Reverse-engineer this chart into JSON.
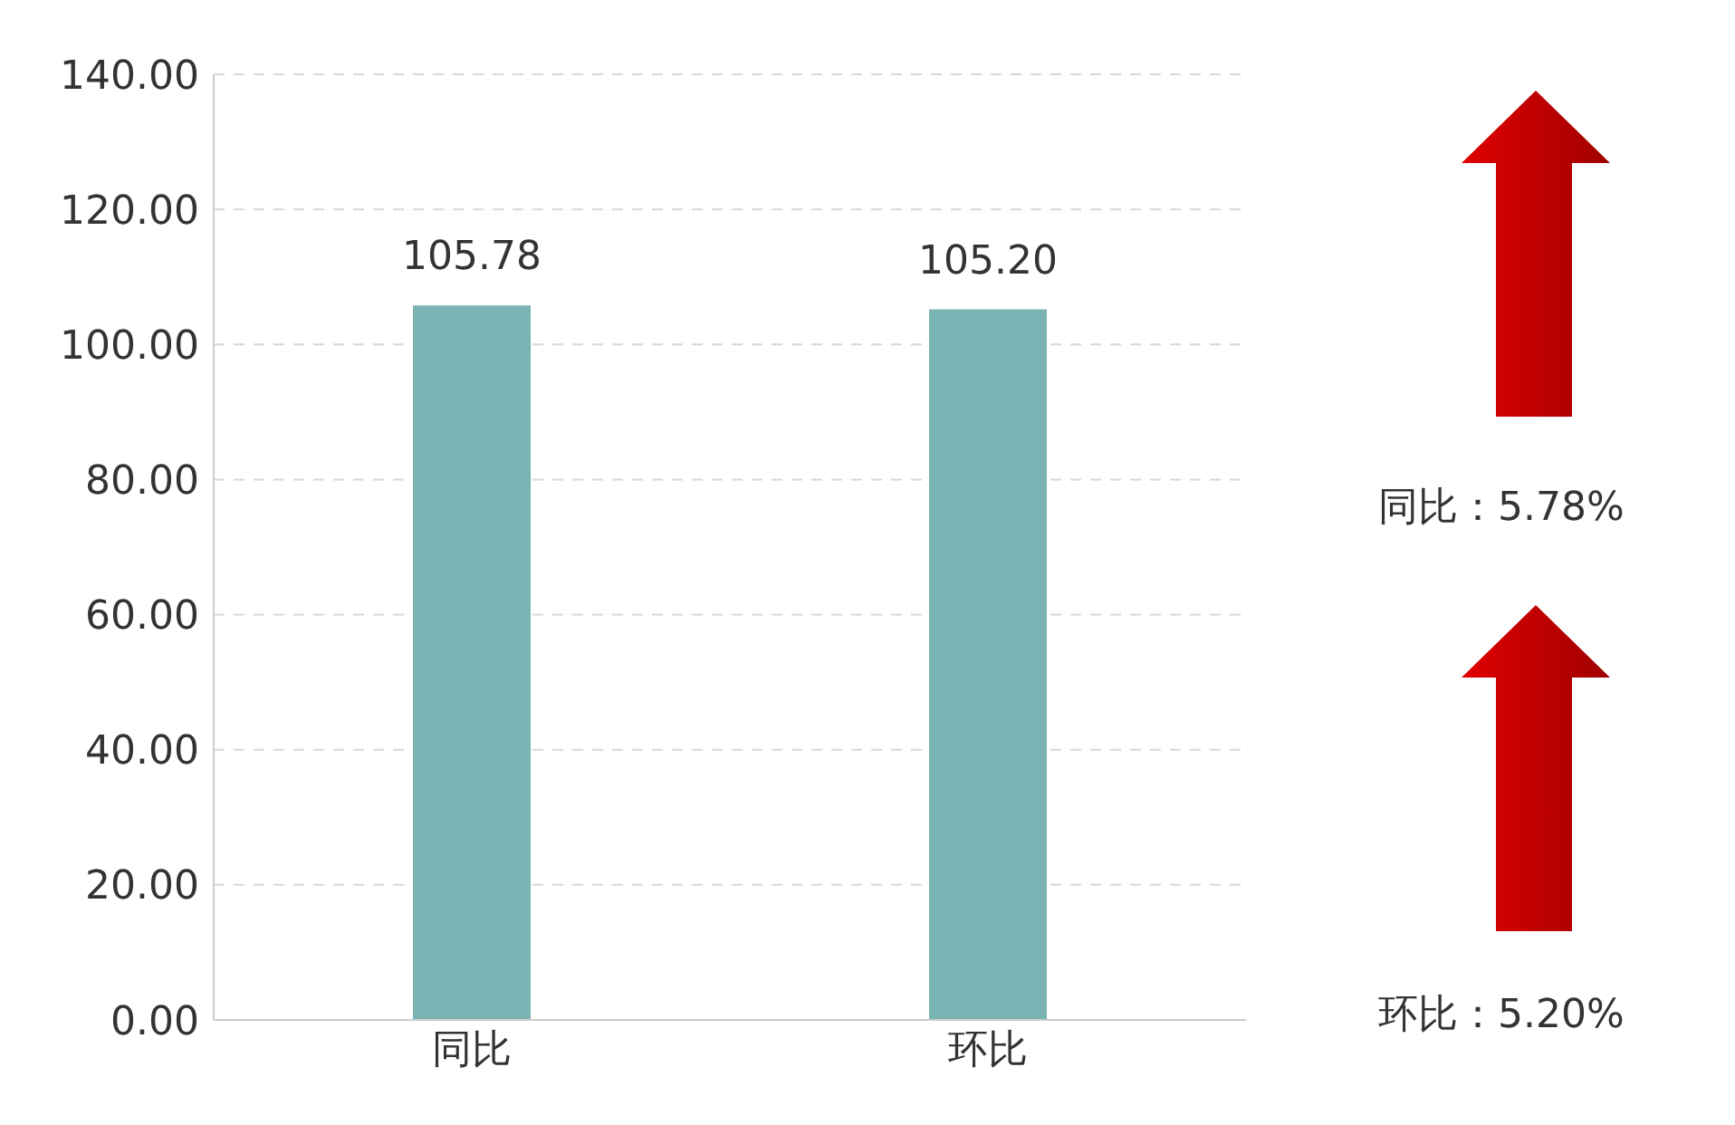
{
  "chart_data": {
    "type": "bar",
    "categories": [
      "同比",
      "环比"
    ],
    "values": [
      105.78,
      105.2
    ],
    "color": "#7ab3b4",
    "value_labels": [
      "105.78",
      "105.20"
    ],
    "ylim": [
      0,
      140
    ],
    "yticks": [
      {
        "value": 0,
        "label": "0.00"
      },
      {
        "value": 20,
        "label": "20.00"
      },
      {
        "value": 40,
        "label": "40.00"
      },
      {
        "value": 60,
        "label": "60.00"
      },
      {
        "value": 80,
        "label": "80.00"
      },
      {
        "value": 100,
        "label": "100.00"
      },
      {
        "value": 120,
        "label": "120.00"
      },
      {
        "value": 140,
        "label": "140.00"
      }
    ],
    "grid": "y",
    "annotations": [
      "同比：5.78%",
      "环比：5.20%"
    ]
  }
}
